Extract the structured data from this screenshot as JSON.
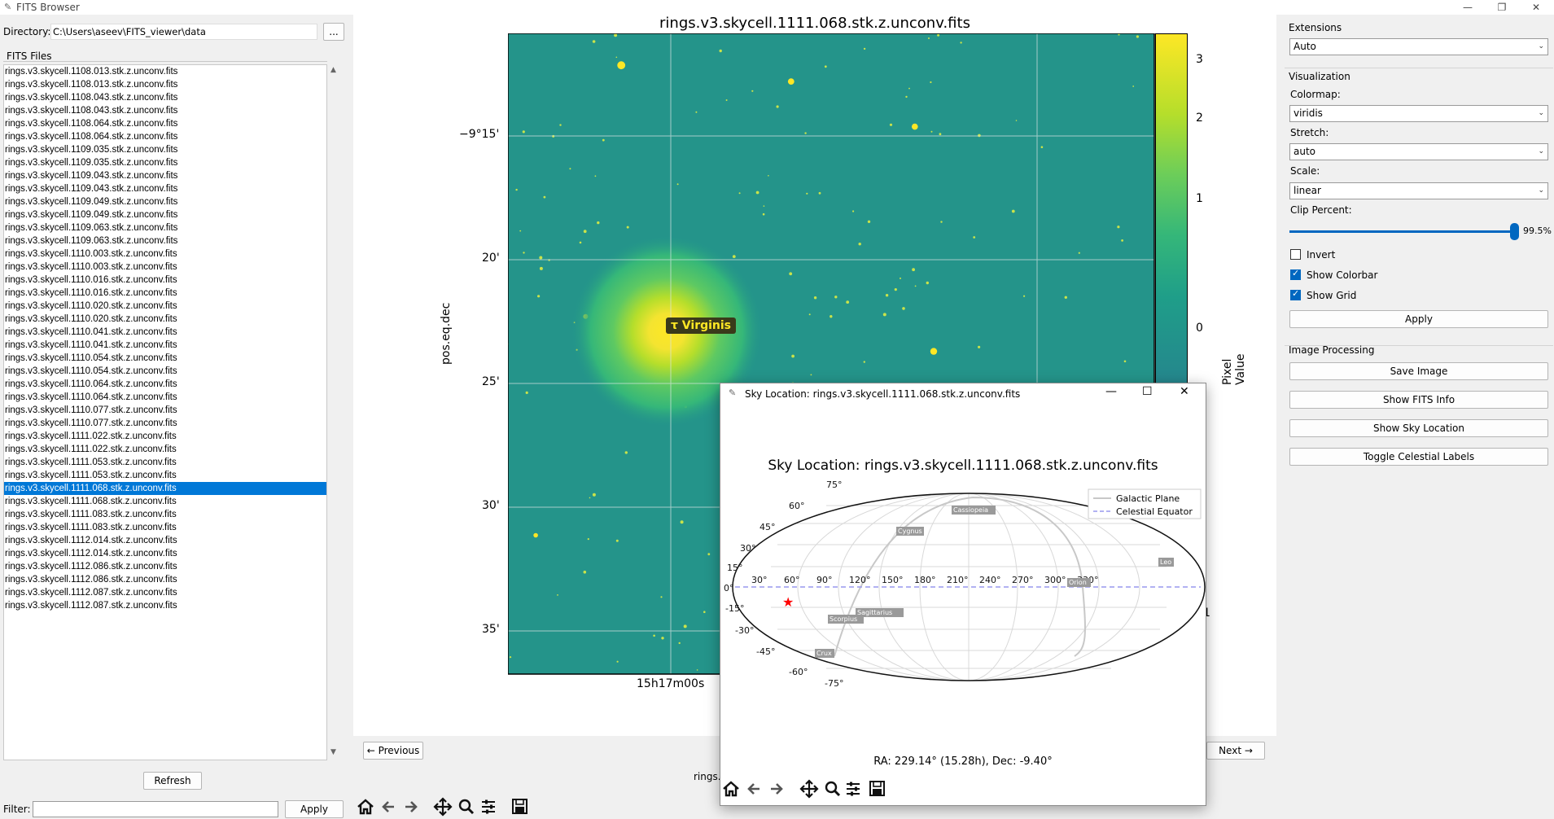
{
  "window": {
    "title": "FITS Browser",
    "controls": [
      "—",
      "❐",
      "✕"
    ]
  },
  "left": {
    "directory_label": "Directory:",
    "directory_value": "C:\\Users\\aseev\\FITS_viewer\\data",
    "browse_label": "...",
    "files_header": "FITS Files",
    "files": [
      "rings.v3.skycell.1108.013.stk.z.unconv.fits",
      "rings.v3.skycell.1108.013.stk.z.unconv.fits",
      "rings.v3.skycell.1108.043.stk.z.unconv.fits",
      "rings.v3.skycell.1108.043.stk.z.unconv.fits",
      "rings.v3.skycell.1108.064.stk.z.unconv.fits",
      "rings.v3.skycell.1108.064.stk.z.unconv.fits",
      "rings.v3.skycell.1109.035.stk.z.unconv.fits",
      "rings.v3.skycell.1109.035.stk.z.unconv.fits",
      "rings.v3.skycell.1109.043.stk.z.unconv.fits",
      "rings.v3.skycell.1109.043.stk.z.unconv.fits",
      "rings.v3.skycell.1109.049.stk.z.unconv.fits",
      "rings.v3.skycell.1109.049.stk.z.unconv.fits",
      "rings.v3.skycell.1109.063.stk.z.unconv.fits",
      "rings.v3.skycell.1109.063.stk.z.unconv.fits",
      "rings.v3.skycell.1110.003.stk.z.unconv.fits",
      "rings.v3.skycell.1110.003.stk.z.unconv.fits",
      "rings.v3.skycell.1110.016.stk.z.unconv.fits",
      "rings.v3.skycell.1110.016.stk.z.unconv.fits",
      "rings.v3.skycell.1110.020.stk.z.unconv.fits",
      "rings.v3.skycell.1110.020.stk.z.unconv.fits",
      "rings.v3.skycell.1110.041.stk.z.unconv.fits",
      "rings.v3.skycell.1110.041.stk.z.unconv.fits",
      "rings.v3.skycell.1110.054.stk.z.unconv.fits",
      "rings.v3.skycell.1110.054.stk.z.unconv.fits",
      "rings.v3.skycell.1110.064.stk.z.unconv.fits",
      "rings.v3.skycell.1110.064.stk.z.unconv.fits",
      "rings.v3.skycell.1110.077.stk.z.unconv.fits",
      "rings.v3.skycell.1110.077.stk.z.unconv.fits",
      "rings.v3.skycell.1111.022.stk.z.unconv.fits",
      "rings.v3.skycell.1111.022.stk.z.unconv.fits",
      "rings.v3.skycell.1111.053.stk.z.unconv.fits",
      "rings.v3.skycell.1111.053.stk.z.unconv.fits",
      "rings.v3.skycell.1111.068.stk.z.unconv.fits",
      "rings.v3.skycell.1111.068.stk.z.unconv.fits",
      "rings.v3.skycell.1111.083.stk.z.unconv.fits",
      "rings.v3.skycell.1111.083.stk.z.unconv.fits",
      "rings.v3.skycell.1112.014.stk.z.unconv.fits",
      "rings.v3.skycell.1112.014.stk.z.unconv.fits",
      "rings.v3.skycell.1112.086.stk.z.unconv.fits",
      "rings.v3.skycell.1112.086.stk.z.unconv.fits",
      "rings.v3.skycell.1112.087.stk.z.unconv.fits",
      "rings.v3.skycell.1112.087.stk.z.unconv.fits"
    ],
    "selected_index": 32,
    "refresh_label": "Refresh",
    "filter_label": "Filter:",
    "filter_value": "",
    "filter_apply_label": "Apply"
  },
  "plot": {
    "title": "rings.v3.skycell.1111.068.stk.z.unconv.fits",
    "ylabel": "pos.eq.dec",
    "dec_ticks": [
      "−9°15'",
      "20'",
      "25'",
      "30'",
      "35'"
    ],
    "ra_tick": "15h17m00s",
    "annotation": "τ Virginis",
    "colorbar_label": "Pixel Value",
    "colorbar_ticks": [
      "3",
      "2",
      "1",
      "0"
    ],
    "prev_label": "← Previous",
    "next_label": "Next →",
    "status_partial": "rings.",
    "right_edge_tick": "1"
  },
  "toolbar_icons": [
    "home-icon",
    "back-arrow-icon",
    "forward-arrow-icon",
    "pan-icon",
    "zoom-icon",
    "configure-icon",
    "save-icon"
  ],
  "right": {
    "extensions_header": "Extensions",
    "extension_value": "Auto",
    "visualization_header": "Visualization",
    "colormap_label": "Colormap:",
    "colormap_value": "viridis",
    "stretch_label": "Stretch:",
    "stretch_value": "auto",
    "scale_label": "Scale:",
    "scale_value": "linear",
    "clip_label": "Clip Percent:",
    "clip_value": "99.5%",
    "clip_fraction": 0.995,
    "invert_label": "Invert",
    "invert_checked": false,
    "colorbar_check_label": "Show Colorbar",
    "colorbar_checked": true,
    "grid_label": "Show Grid",
    "grid_checked": true,
    "apply_label": "Apply",
    "processing_header": "Image Processing",
    "save_image_label": "Save Image",
    "fits_info_label": "Show FITS Info",
    "sky_location_label": "Show Sky Location",
    "celestial_labels_label": "Toggle Celestial Labels"
  },
  "sky_window": {
    "title": "Sky Location: rings.v3.skycell.1111.068.stk.z.unconv.fits",
    "plot_title": "Sky Location: rings.v3.skycell.1111.068.stk.z.unconv.fits",
    "legend_galactic": "Galactic Plane",
    "legend_equator": "Celestial Equator",
    "ra_ticks": [
      "30°",
      "60°",
      "90°",
      "120°",
      "150°",
      "180°",
      "210°",
      "240°",
      "270°",
      "300°",
      "330°"
    ],
    "dec_ticks": [
      "75°",
      "60°",
      "45°",
      "30°",
      "15°",
      "0°",
      "-15°",
      "-30°",
      "-45°",
      "-60°",
      "-75°"
    ],
    "constellations": [
      "Cassiopeia",
      "Cygnus",
      "Leo",
      "Sagittarius",
      "Scorpius",
      "Crux",
      "Orion"
    ],
    "status": "RA: 229.14° (15.28h), Dec: -9.40°",
    "accent": "#ff0000"
  }
}
